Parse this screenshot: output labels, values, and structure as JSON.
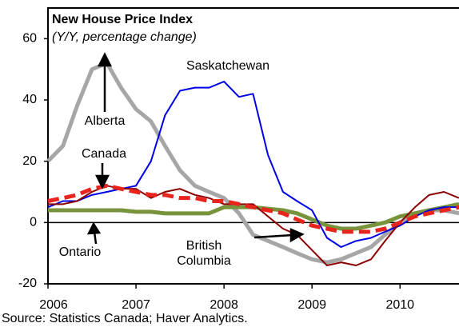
{
  "chart_data": {
    "type": "line",
    "title": "New House Price Index",
    "subtitle": "(Y/Y, percentage change)",
    "source": "Source: Statistics Canada; Haver Analytics.",
    "xlim": [
      2006,
      2010.67
    ],
    "xticks": [
      2006,
      2007,
      2008,
      2009,
      2010
    ],
    "ylim": [
      -20,
      70
    ],
    "yticks": [
      -20,
      0,
      20,
      40,
      60
    ],
    "x": [
      2006,
      2006.17,
      2006.33,
      2006.5,
      2006.67,
      2006.83,
      2007,
      2007.17,
      2007.33,
      2007.5,
      2007.67,
      2007.83,
      2008,
      2008.17,
      2008.33,
      2008.5,
      2008.67,
      2008.83,
      2009,
      2009.17,
      2009.33,
      2009.5,
      2009.67,
      2009.83,
      2010,
      2010.17,
      2010.33,
      2010.5,
      2010.67
    ],
    "series": [
      {
        "name": "Alberta",
        "color": "#a6a6a6",
        "width": 5,
        "dashed": false,
        "values": [
          20,
          25,
          38,
          50,
          52,
          44,
          37,
          33,
          25,
          17,
          12,
          10,
          8,
          3,
          -4,
          -6,
          -8,
          -10,
          -12,
          -13,
          -12,
          -10,
          -8,
          -4,
          0,
          3,
          4,
          4,
          3
        ]
      },
      {
        "name": "Ontario",
        "color": "#77933c",
        "width": 5,
        "dashed": false,
        "values": [
          4,
          4,
          4,
          4,
          4,
          4,
          3.5,
          3.5,
          3,
          3,
          3,
          3,
          5,
          5,
          5,
          4.5,
          4,
          3,
          1,
          -1,
          -2,
          -2,
          -1,
          0,
          2,
          3,
          4,
          5,
          6
        ]
      },
      {
        "name": "Saskatchewan",
        "color": "#0000e6",
        "width": 2,
        "dashed": false,
        "values": [
          5,
          7,
          7,
          9,
          10,
          11,
          12,
          20,
          35,
          43,
          44,
          44,
          46,
          41,
          42,
          22,
          10,
          7,
          4,
          -5,
          -8,
          -6,
          -5,
          -3,
          -1,
          2,
          4,
          5,
          5
        ]
      },
      {
        "name": "British Columbia",
        "color": "#8b0000",
        "width": 2,
        "dashed": false,
        "values": [
          6,
          6,
          7,
          10,
          12,
          11,
          11,
          8,
          10,
          11,
          9,
          8,
          6,
          6,
          6,
          2,
          -2,
          -4,
          -9,
          -14,
          -13,
          -14,
          -12,
          -6,
          0,
          5,
          9,
          10,
          8
        ]
      },
      {
        "name": "Canada",
        "color": "#e8241c",
        "width": 5,
        "dashed": true,
        "values": [
          7,
          8,
          9,
          11,
          12,
          11,
          10,
          9,
          9,
          8,
          8,
          7,
          7,
          6,
          5,
          4,
          3,
          1,
          -1,
          -2,
          -3,
          -3,
          -3,
          -2,
          0,
          2,
          3,
          4,
          5
        ]
      }
    ]
  }
}
